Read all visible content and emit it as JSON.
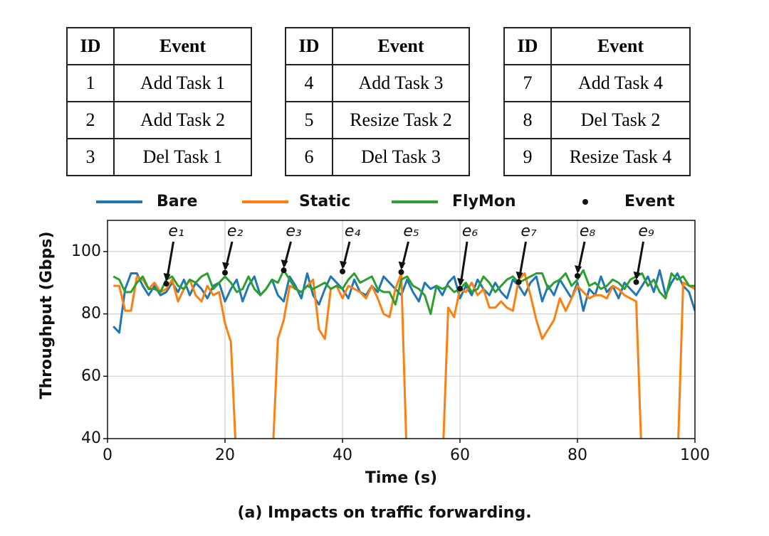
{
  "tables": [
    {
      "header": [
        "ID",
        "Event"
      ],
      "rows": [
        [
          "1",
          "Add Task 1"
        ],
        [
          "2",
          "Add Task 2"
        ],
        [
          "3",
          "Del Task 1"
        ]
      ]
    },
    {
      "header": [
        "ID",
        "Event"
      ],
      "rows": [
        [
          "4",
          "Add Task 3"
        ],
        [
          "5",
          "Resize Task 2"
        ],
        [
          "6",
          "Del Task 3"
        ]
      ]
    },
    {
      "header": [
        "ID",
        "Event"
      ],
      "rows": [
        [
          "7",
          "Add Task 4"
        ],
        [
          "8",
          "Del Task 2"
        ],
        [
          "9",
          "Resize Task 4"
        ]
      ]
    }
  ],
  "chart_data": {
    "type": "line",
    "x_label": "Time (s)",
    "y_label": "Throughput (Gbps)",
    "caption": "(a) Impacts on traffic forwarding.",
    "xlim": [
      0,
      100
    ],
    "xticks": [
      0,
      20,
      40,
      60,
      80,
      100
    ],
    "ylim": [
      40,
      110
    ],
    "yticks": [
      40,
      60,
      80,
      100
    ],
    "grid": true,
    "legend": "top",
    "x": [
      1,
      2,
      3,
      4,
      5,
      6,
      7,
      8,
      9,
      10,
      11,
      12,
      13,
      14,
      15,
      16,
      17,
      18,
      19,
      20,
      21,
      22,
      23,
      24,
      25,
      26,
      27,
      28,
      29,
      30,
      31,
      32,
      33,
      34,
      35,
      36,
      37,
      38,
      39,
      40,
      41,
      42,
      43,
      44,
      45,
      46,
      47,
      48,
      49,
      50,
      51,
      52,
      53,
      54,
      55,
      56,
      57,
      58,
      59,
      60,
      61,
      62,
      63,
      64,
      65,
      66,
      67,
      68,
      69,
      70,
      71,
      72,
      73,
      74,
      75,
      76,
      77,
      78,
      79,
      80,
      81,
      82,
      83,
      84,
      85,
      86,
      87,
      88,
      89,
      90,
      91,
      92,
      93,
      94,
      95,
      96,
      97,
      98,
      99,
      100
    ],
    "series": [
      {
        "name": "Bare",
        "color": "#1f77b4",
        "values": [
          76,
          74,
          88,
          93,
          93,
          89,
          86,
          89,
          86,
          87,
          90,
          87,
          91,
          86,
          90,
          88,
          85,
          89,
          90,
          84,
          88,
          91,
          84,
          89,
          92,
          86,
          88,
          91,
          86,
          84,
          92,
          89,
          85,
          93,
          86,
          83,
          88,
          92,
          90,
          88,
          85,
          91,
          87,
          86,
          89,
          87,
          92,
          90,
          88,
          86,
          91,
          87,
          84,
          90,
          88,
          89,
          86,
          90,
          92,
          85,
          89,
          86,
          91,
          88,
          86,
          90,
          87,
          85,
          91,
          89,
          86,
          90,
          92,
          84,
          89,
          86,
          91,
          88,
          85,
          90,
          81,
          88,
          86,
          92,
          87,
          89,
          85,
          90,
          88,
          86,
          89,
          92,
          87,
          94,
          86,
          90,
          93,
          89,
          87,
          81
        ]
      },
      {
        "name": "Static",
        "color": "#ff7f0e",
        "values": [
          89,
          89,
          81,
          81,
          92,
          91,
          88,
          90,
          87,
          88,
          91,
          84,
          88,
          91,
          86,
          84,
          89,
          86,
          87,
          77,
          71,
          30,
          30,
          30,
          30,
          30,
          30,
          30,
          72,
          78,
          89,
          88,
          87,
          89,
          91,
          75,
          72,
          88,
          89,
          85,
          89,
          88,
          87,
          85,
          89,
          85,
          80,
          79,
          88,
          93,
          30,
          30,
          30,
          30,
          30,
          30,
          30,
          82,
          79,
          88,
          87,
          90,
          86,
          88,
          82,
          82,
          84,
          82,
          81,
          91,
          93,
          86,
          78,
          72,
          75,
          78,
          85,
          81,
          85,
          89,
          87,
          85,
          86,
          86,
          85,
          89,
          88,
          86,
          85,
          84,
          30,
          30,
          30,
          30,
          30,
          30,
          30,
          90,
          89,
          88
        ]
      },
      {
        "name": "FlyMon",
        "color": "#2ca02c",
        "values": [
          92,
          91,
          87,
          87,
          90,
          92,
          88,
          88,
          87,
          91,
          92,
          89,
          88,
          91,
          90,
          92,
          93,
          88,
          90,
          92,
          90,
          87,
          88,
          92,
          88,
          86,
          88,
          91,
          90,
          94,
          91,
          88,
          87,
          89,
          88,
          89,
          90,
          88,
          89,
          88,
          91,
          93,
          90,
          91,
          92,
          88,
          87,
          87,
          83,
          91,
          92,
          89,
          88,
          86,
          80,
          89,
          88,
          89,
          87,
          88,
          90,
          87,
          88,
          92,
          90,
          87,
          89,
          91,
          92,
          90,
          91,
          92,
          93,
          93,
          88,
          90,
          91,
          93,
          89,
          91,
          94,
          89,
          90,
          88,
          89,
          91,
          90,
          88,
          91,
          92,
          93,
          89,
          91,
          87,
          85,
          93,
          91,
          92,
          89,
          89
        ]
      },
      {
        "name": "Event",
        "type": "scatter",
        "color": "#111111",
        "x": [
          10,
          20,
          30,
          40,
          50,
          60,
          70,
          80,
          90
        ],
        "values": [
          89.7,
          93.2,
          94,
          93.6,
          93.4,
          88.1,
          90.2,
          92.2,
          90.2
        ],
        "annotations": [
          "e₁",
          "e₂",
          "e₃",
          "e₄",
          "e₅",
          "e₆",
          "e₇",
          "e₈",
          "e₉"
        ]
      }
    ]
  }
}
